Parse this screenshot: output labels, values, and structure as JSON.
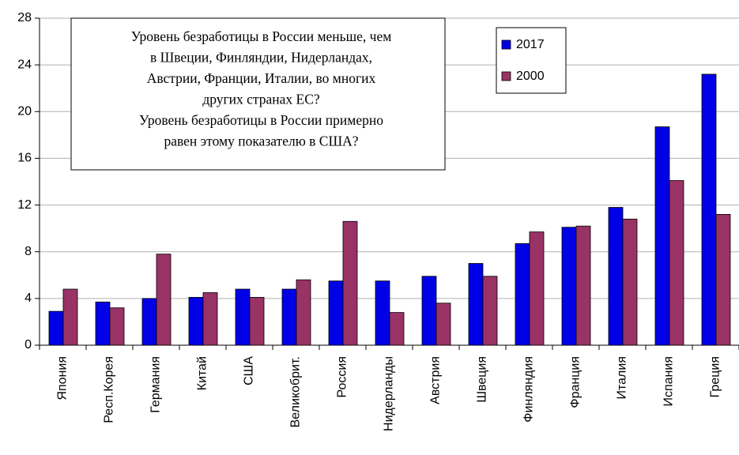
{
  "chart_data": {
    "type": "bar",
    "annotation": [
      "Уровень безработицы  в России меньше, чем",
      "в Швеции, Финляндии, Нидерландах,",
      "Австрии, Франции, Италии, во многих",
      "других странах ЕС?",
      "Уровень безработицы в России примерно",
      "равен этому показателю в США?"
    ],
    "categories": [
      "Япония",
      "Респ.Корея",
      "Германия",
      "Китай",
      "США",
      "Великобрит.",
      "Россия",
      "Нидерланды",
      "Австрия",
      "Швеция",
      "Финляндия",
      "Франция",
      "Италия",
      "Испания",
      "Греция"
    ],
    "series": [
      {
        "name": "2017",
        "color": "#0000e6",
        "values": [
          2.9,
          3.7,
          4.0,
          4.1,
          4.8,
          4.8,
          5.5,
          5.5,
          5.9,
          7.0,
          8.7,
          10.1,
          11.8,
          18.7,
          23.2
        ]
      },
      {
        "name": "2000",
        "color": "#993366",
        "values": [
          4.8,
          3.2,
          7.8,
          4.5,
          4.1,
          5.6,
          10.6,
          2.8,
          3.6,
          5.9,
          9.7,
          10.2,
          10.8,
          14.1,
          11.2
        ]
      }
    ],
    "ylim": [
      0,
      28
    ],
    "yticks": [
      0,
      4,
      8,
      12,
      16,
      20,
      24,
      28
    ],
    "grid": true,
    "legend": "top-right"
  }
}
